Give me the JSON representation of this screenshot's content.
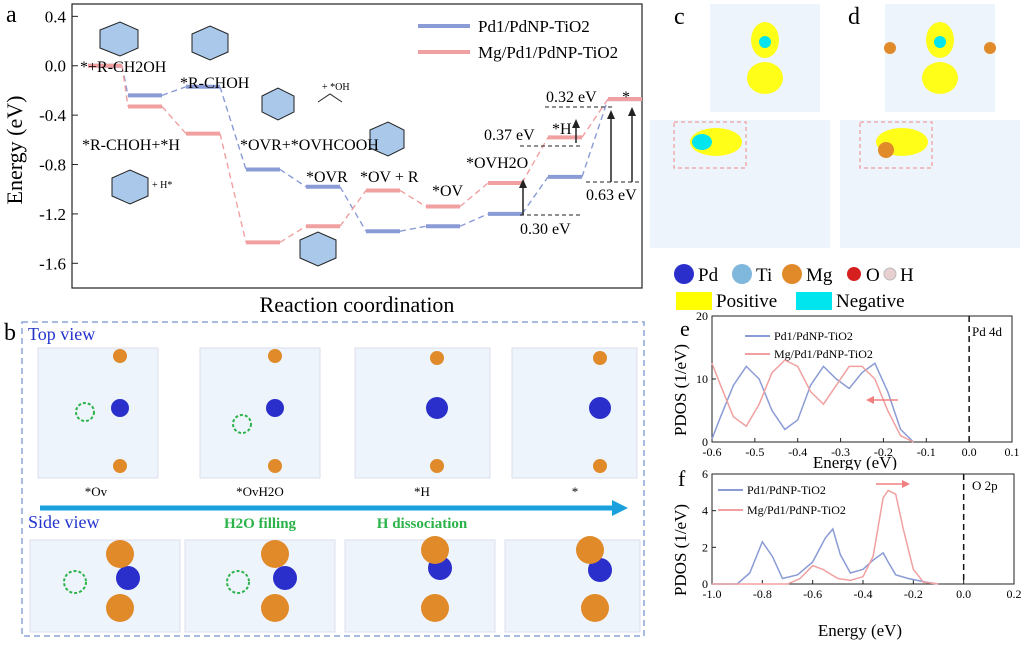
{
  "panel_labels": {
    "a": "a",
    "b": "b",
    "c": "c",
    "d": "d",
    "e": "e",
    "f": "f"
  },
  "chart_data": [
    {
      "id": "a",
      "type": "line",
      "ylabel": "Energy (eV)",
      "xlabel": "Reaction coordination",
      "ylim": [
        -1.8,
        0.5
      ],
      "yticks": [
        "0.4",
        "0.0",
        "-0.4",
        "-0.8",
        "-1.2",
        "-1.6"
      ],
      "series": [
        {
          "name": "Pd1/PdNP-TiO2",
          "color": "#8a9bd6",
          "values": [
            0.0,
            -0.24,
            -0.17,
            -0.84,
            -0.98,
            -1.34,
            -1.3,
            -1.2,
            -0.9,
            -0.27
          ]
        },
        {
          "name": "Mg/Pd1/PdNP-TiO2",
          "color": "#f0a0a0",
          "values": [
            0.0,
            -0.33,
            -0.55,
            -1.43,
            -1.3,
            -1.01,
            -1.14,
            -0.95,
            -0.58,
            -0.27
          ]
        }
      ],
      "annotations": {
        "e1": "*+R-CH2OH",
        "e2": "*R-CHOH",
        "e3": "*R-CHOH+*H",
        "e4": "*OVR+*OVHCOOH",
        "e5": "*OVR",
        "e6": "*OV + R",
        "e7": "*OV",
        "e8": "*OVH2O",
        "e9": "*H",
        "e10": "*",
        "v1": "0.37 eV",
        "v2": "0.32 eV",
        "v3": "0.63 eV",
        "v4": "0.30 eV",
        "fa": "+ *OH",
        "fb": "+ H*"
      }
    },
    {
      "id": "e",
      "type": "line",
      "ylabel": "PDOS (1/eV)",
      "xlabel": "Energy (eV)",
      "xlim": [
        -0.6,
        0.1
      ],
      "ylim": [
        0,
        20
      ],
      "xticks": [
        "-0.6",
        "-0.5",
        "-0.4",
        "-0.3",
        "-0.2",
        "-0.1",
        "0.0",
        "0.1"
      ],
      "yticks": [
        "0",
        "10",
        "20"
      ],
      "label": "Pd 4d",
      "series": [
        {
          "name": "Pd1/PdNP-TiO2",
          "color": "#8a9bd6",
          "x": [
            -0.6,
            -0.58,
            -0.55,
            -0.52,
            -0.49,
            -0.46,
            -0.43,
            -0.4,
            -0.37,
            -0.34,
            -0.31,
            -0.28,
            -0.25,
            -0.22,
            -0.19,
            -0.16,
            -0.13
          ],
          "y": [
            0.5,
            4,
            9,
            12,
            10,
            5,
            2,
            3.5,
            9,
            12,
            10,
            8.5,
            11,
            12.5,
            8,
            2,
            0
          ]
        },
        {
          "name": "Mg/Pd1/PdNP-TiO2",
          "color": "#f0a0a0",
          "x": [
            -0.6,
            -0.58,
            -0.55,
            -0.52,
            -0.49,
            -0.46,
            -0.43,
            -0.4,
            -0.37,
            -0.34,
            -0.31,
            -0.28,
            -0.25,
            -0.22,
            -0.19,
            -0.16,
            -0.13
          ],
          "y": [
            12.5,
            9,
            4,
            2.5,
            6,
            11,
            13,
            12,
            8,
            6,
            9,
            12,
            12,
            10,
            5,
            1,
            0
          ]
        }
      ]
    },
    {
      "id": "f",
      "type": "line",
      "ylabel": "PDOS (1/eV)",
      "xlabel": "Energy (eV)",
      "xlim": [
        -1.0,
        0.2
      ],
      "ylim": [
        0,
        6
      ],
      "xticks": [
        "-1.0",
        "-0.8",
        "-0.6",
        "-0.4",
        "-0.2",
        "0.0",
        "0.2"
      ],
      "yticks": [
        "0",
        "2",
        "4",
        "6"
      ],
      "label": "O 2p",
      "series": [
        {
          "name": "Pd1/PdNP-TiO2",
          "color": "#8a9bd6",
          "x": [
            -1.0,
            -0.9,
            -0.85,
            -0.8,
            -0.76,
            -0.72,
            -0.66,
            -0.6,
            -0.55,
            -0.52,
            -0.49,
            -0.45,
            -0.4,
            -0.36,
            -0.32,
            -0.3,
            -0.27,
            -0.22,
            -0.15,
            -0.1
          ],
          "y": [
            0,
            0,
            0.6,
            2.3,
            1.5,
            0.3,
            0.5,
            1.2,
            2.5,
            3.0,
            1.6,
            0.6,
            0.8,
            1.3,
            1.7,
            1.2,
            0.5,
            0.3,
            0.1,
            0
          ]
        },
        {
          "name": "Mg/Pd1/PdNP-TiO2",
          "color": "#f0a0a0",
          "x": [
            -1.0,
            -0.8,
            -0.7,
            -0.65,
            -0.6,
            -0.56,
            -0.5,
            -0.45,
            -0.4,
            -0.36,
            -0.32,
            -0.3,
            -0.27,
            -0.24,
            -0.2,
            -0.16,
            -0.1
          ],
          "y": [
            0,
            0,
            0,
            0.3,
            1.0,
            0.8,
            0.3,
            0.2,
            0.4,
            1.5,
            4.7,
            5.1,
            4.9,
            3.0,
            0.8,
            0.1,
            0
          ]
        }
      ]
    }
  ],
  "panel_b": {
    "top_view": "Top view",
    "side_view": "Side view",
    "h2o_filling": "H2O filling",
    "h_dissociation": "H dissociation",
    "states": [
      "*Ov",
      "*OvH2O",
      "*H",
      "*"
    ]
  },
  "legend_cd": {
    "pd": "Pd",
    "ti": "Ti",
    "mg": "Mg",
    "o": "O",
    "h": "H",
    "positive": "Positive",
    "negative": "Negative"
  },
  "colors": {
    "pd": "#2a2fcc",
    "ti": "#7fb7dd",
    "mg": "#e08a2a",
    "o": "#d62020",
    "h": "#e8d0d0",
    "positive": "#ffff00",
    "negative": "#00e5ee"
  }
}
